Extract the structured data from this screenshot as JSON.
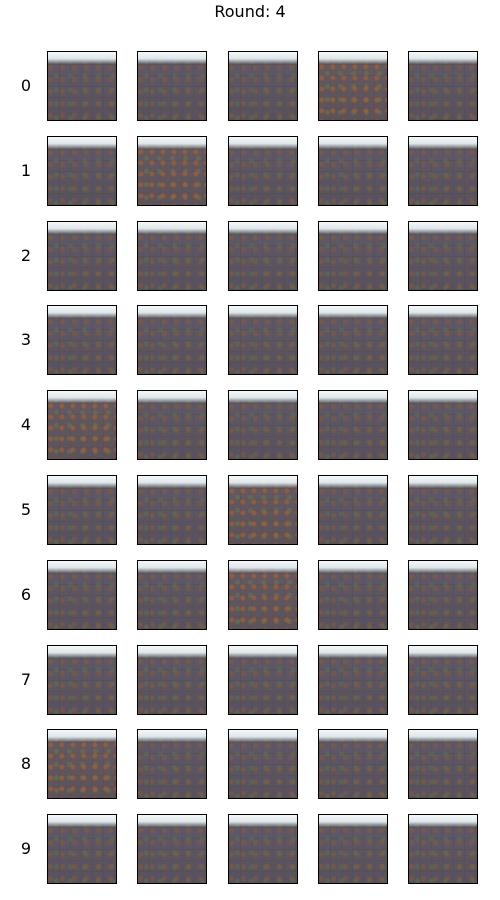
{
  "figure": {
    "title": "Round: 4",
    "rows": [
      {
        "label": "0",
        "tiles": 5
      },
      {
        "label": "1",
        "tiles": 5
      },
      {
        "label": "2",
        "tiles": 5
      },
      {
        "label": "3",
        "tiles": 5
      },
      {
        "label": "4",
        "tiles": 5
      },
      {
        "label": "5",
        "tiles": 5
      },
      {
        "label": "6",
        "tiles": 5
      },
      {
        "label": "7",
        "tiles": 5
      },
      {
        "label": "8",
        "tiles": 5
      },
      {
        "label": "9",
        "tiles": 5
      }
    ]
  }
}
